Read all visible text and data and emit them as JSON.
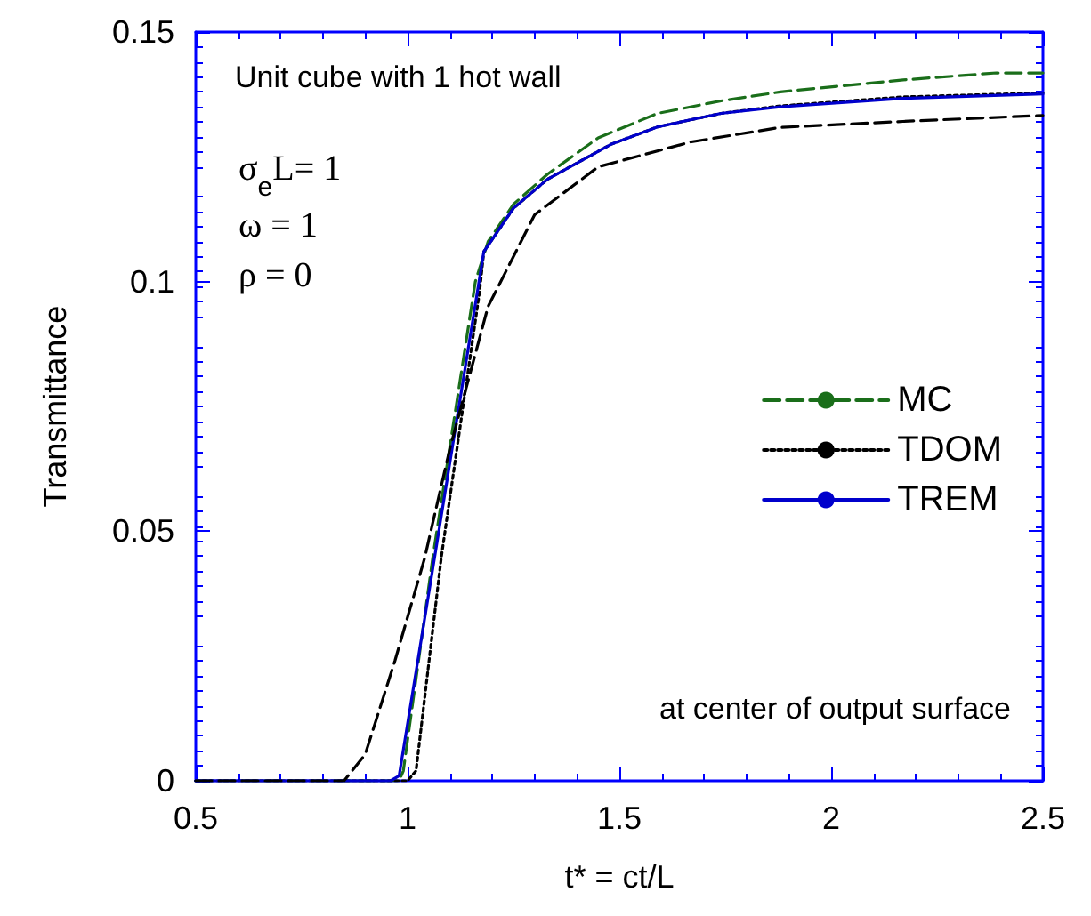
{
  "chart_data": {
    "type": "line",
    "xlabel": "t* = ct/L",
    "ylabel": "Transmittance",
    "annotations": [
      "Unit cube with 1 hot wall",
      "σ$_{e}$L= 1",
      "ω = 1",
      "ρ = 0",
      "at center of output surface"
    ],
    "xlim": [
      0.5,
      2.5
    ],
    "xticks": [
      0.5,
      1,
      1.5,
      2,
      2.5
    ],
    "ylim": [
      0,
      0.15
    ],
    "yticks": [
      0,
      0.05,
      0.1,
      0.15
    ],
    "grid": false,
    "legend": "right",
    "marker": "none",
    "series": [
      {
        "name": "MC",
        "color": "#1a6e1a",
        "line_style": "dashed",
        "x": [
          0.5,
          0.98,
          0.99,
          1.06,
          1.16,
          1.19,
          1.25,
          1.33,
          1.45,
          1.59,
          1.74,
          1.88,
          2.17,
          2.39,
          2.5
        ],
        "values": [
          0,
          0,
          0.002,
          0.045,
          0.1,
          0.108,
          0.1155,
          0.1215,
          0.1288,
          0.1337,
          0.1362,
          0.138,
          0.1404,
          0.1418,
          0.1418
        ]
      },
      {
        "name": "TDOM",
        "color": "#000000",
        "line_style": "dotted",
        "x": [
          0.5,
          1.0,
          1.02,
          1.08,
          1.17,
          1.18,
          1.25,
          1.33,
          1.48,
          1.59,
          1.74,
          1.88,
          2.17,
          2.5
        ],
        "values": [
          0,
          0,
          0.002,
          0.045,
          0.098,
          0.106,
          0.1147,
          0.1205,
          0.1275,
          0.131,
          0.1337,
          0.1352,
          0.137,
          0.1378
        ]
      },
      {
        "name": "TREM",
        "color": "#0000cc",
        "line_style": "solid",
        "x": [
          0.5,
          0.96,
          0.98,
          1.07,
          1.18,
          1.25,
          1.33,
          1.48,
          1.59,
          1.74,
          1.88,
          2.17,
          2.5
        ],
        "values": [
          0,
          0,
          0.001,
          0.048,
          0.106,
          0.1147,
          0.1205,
          0.1275,
          0.131,
          0.1337,
          0.135,
          0.1367,
          0.1376
        ]
      },
      {
        "color": "#000000",
        "line_style": "dashed",
        "x": [
          0.5,
          0.85,
          0.9,
          0.97,
          1.04,
          1.1,
          1.19,
          1.3,
          1.45,
          1.67,
          1.88,
          2.17,
          2.5
        ],
        "values": [
          0,
          0,
          0.0053,
          0.024,
          0.0445,
          0.0666,
          0.095,
          0.1134,
          0.123,
          0.128,
          0.1309,
          0.1321,
          0.1333
        ]
      }
    ]
  }
}
